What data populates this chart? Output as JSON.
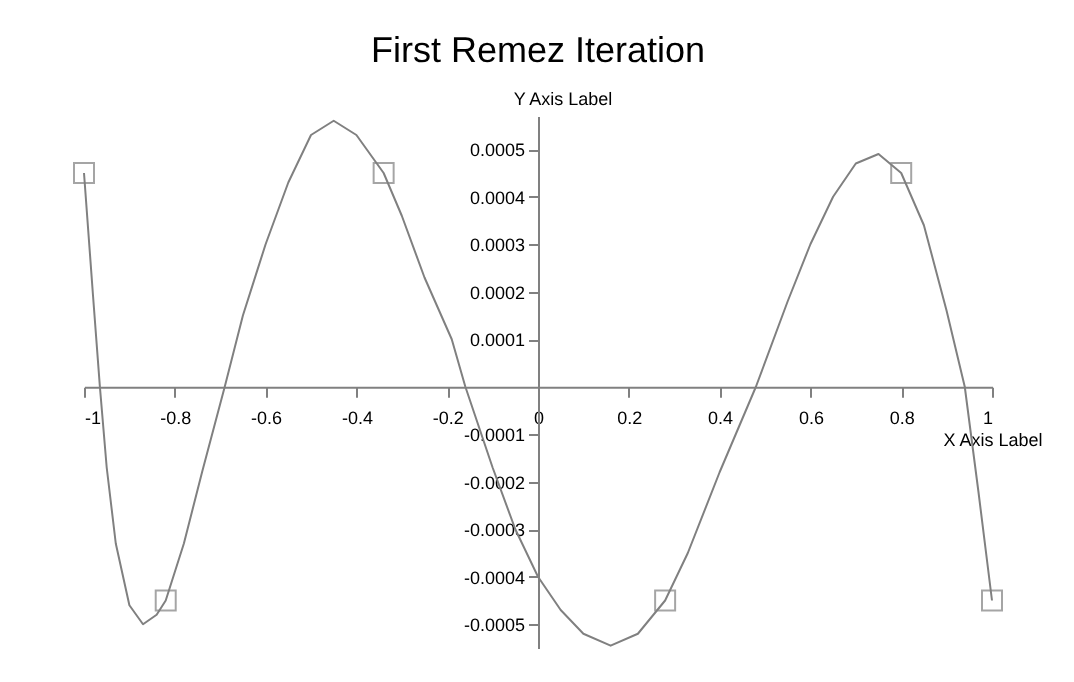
{
  "chart_data": {
    "type": "line",
    "title": "First Remez Iteration",
    "xlabel": "X Axis Label",
    "ylabel": "Y Axis Label",
    "xlim": [
      -1,
      1
    ],
    "ylim": [
      -0.00055,
      0.00057
    ],
    "xticks": [
      -1,
      -0.8,
      -0.6,
      -0.4,
      -0.2,
      0,
      0.2,
      0.4,
      0.6,
      0.8,
      1
    ],
    "yticks": [
      -0.0005,
      -0.0004,
      -0.0003,
      -0.0002,
      -0.0001,
      0.0001,
      0.0002,
      0.0003,
      0.0004,
      0.0005
    ],
    "grid": false,
    "series": [
      {
        "color": "#808080",
        "marker": "none",
        "x": [
          -1,
          -0.98,
          -0.965,
          -0.95,
          -0.93,
          -0.9,
          -0.87,
          -0.84,
          -0.82,
          -0.78,
          -0.74,
          -0.69,
          -0.65,
          -0.6,
          -0.55,
          -0.5,
          -0.45,
          -0.4,
          -0.34,
          -0.3,
          -0.25,
          -0.19,
          -0.16,
          -0.1,
          -0.05,
          0,
          0.05,
          0.1,
          0.16,
          0.22,
          0.28,
          0.33,
          0.4,
          0.48,
          0.55,
          0.6,
          0.65,
          0.7,
          0.75,
          0.8,
          0.85,
          0.9,
          0.94,
          0.97,
          1
        ],
        "values": [
          0.00045,
          0.00019,
          0,
          -0.00017,
          -0.00033,
          -0.00046,
          -0.0005,
          -0.00048,
          -0.00045,
          -0.00033,
          -0.00018,
          0,
          0.00015,
          0.0003,
          0.00043,
          0.00053,
          0.00056,
          0.00053,
          0.00045,
          0.00036,
          0.00023,
          0.0001,
          0,
          -0.00017,
          -0.0003,
          -0.0004,
          -0.00047,
          -0.00052,
          -0.000545,
          -0.00052,
          -0.00045,
          -0.00035,
          -0.00018,
          0,
          0.00018,
          0.0003,
          0.0004,
          0.00047,
          0.00049,
          0.00045,
          0.00034,
          0.00016,
          0,
          -0.00022,
          -0.00045
        ]
      },
      {
        "type": "scatter",
        "color": "#808080",
        "marker": "square",
        "x": [
          -1,
          -0.82,
          -0.34,
          0.28,
          0.8,
          1
        ],
        "values": [
          0.00045,
          -0.00045,
          0.00045,
          -0.00045,
          0.00045,
          -0.00045
        ]
      }
    ]
  }
}
